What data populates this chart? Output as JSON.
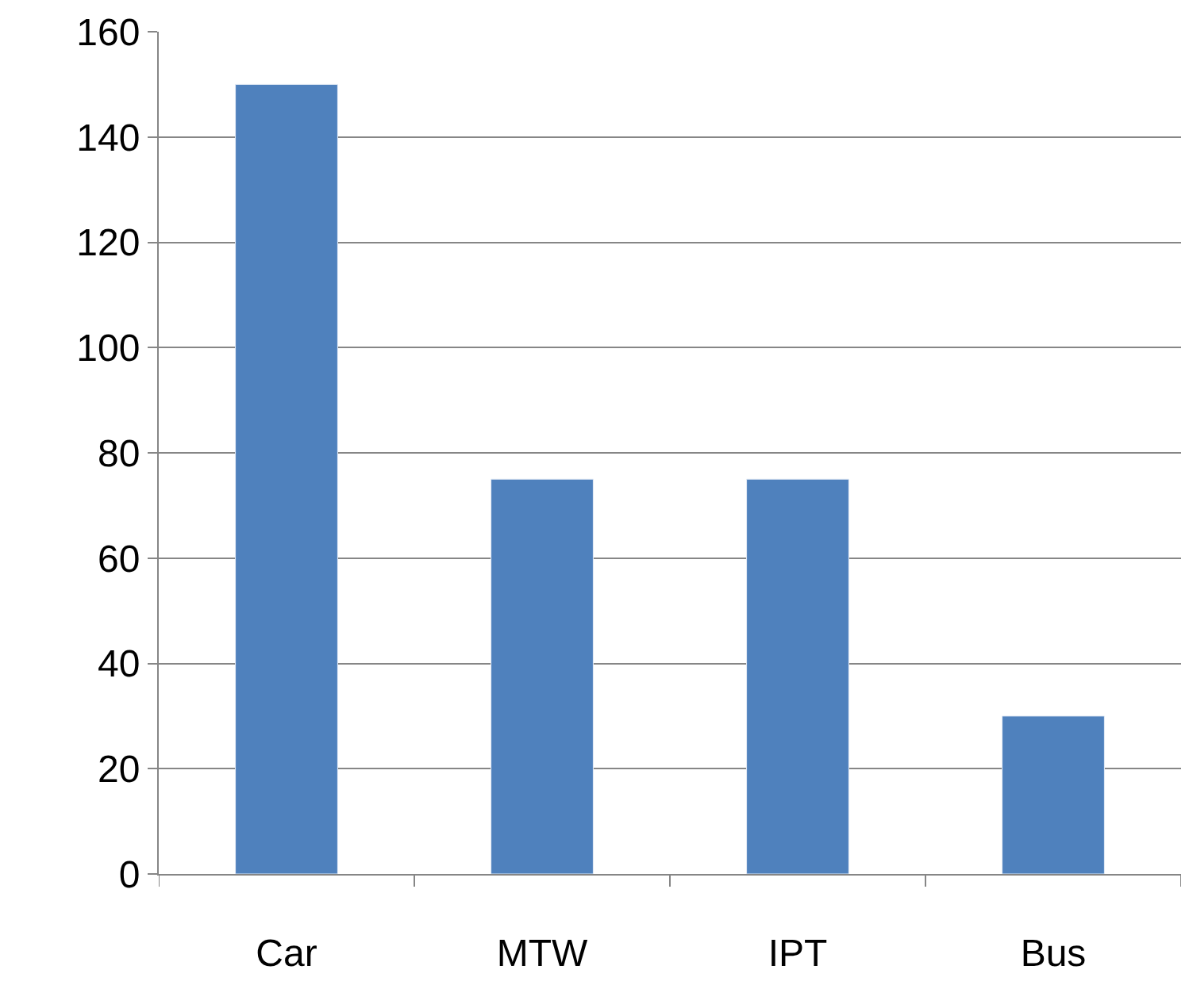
{
  "chart_data": {
    "type": "bar",
    "categories": [
      "Car",
      "MTW",
      "IPT",
      "Bus"
    ],
    "values": [
      150,
      75,
      75,
      30
    ],
    "color": "#4f81bd",
    "ylim": [
      0,
      160
    ],
    "yticks": [
      0,
      20,
      40,
      60,
      80,
      100,
      120,
      140,
      160
    ],
    "grid": "y"
  }
}
